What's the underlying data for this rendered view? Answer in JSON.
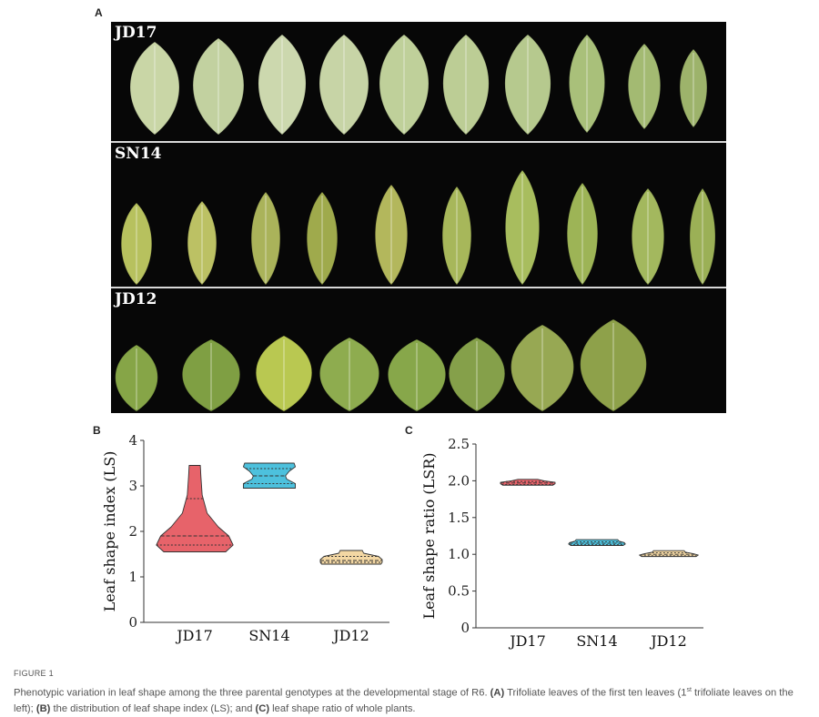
{
  "panels": {
    "a": "A",
    "b": "B",
    "c": "C"
  },
  "photo": {
    "strips": [
      {
        "label": "JD17",
        "leaves": 10,
        "color": "#c9d6a6"
      },
      {
        "label": "SN14",
        "leaves": 10,
        "color": "#a7b85a"
      },
      {
        "label": "JD12",
        "leaves": 8,
        "color": "#7fa045"
      }
    ]
  },
  "chart_data": [
    {
      "type": "violin",
      "ylabel": "Leaf shape index (LS)",
      "ylim": [
        0,
        4
      ],
      "yticks": [
        "0",
        "1",
        "2",
        "3",
        "4"
      ],
      "categories": [
        "JD17",
        "SN14",
        "JD12"
      ],
      "series": [
        {
          "category": "JD17",
          "color": "#e7636a",
          "min": 1.55,
          "max": 3.45,
          "median": 1.9,
          "q1": 1.7,
          "q3": 2.72,
          "profile": [
            [
              1.55,
              0.5
            ],
            [
              1.7,
              0.62
            ],
            [
              1.9,
              0.55
            ],
            [
              2.1,
              0.38
            ],
            [
              2.4,
              0.2
            ],
            [
              2.8,
              0.12
            ],
            [
              3.2,
              0.1
            ],
            [
              3.45,
              0.09
            ]
          ]
        },
        {
          "category": "SN14",
          "color": "#4dc1dd",
          "min": 2.95,
          "max": 3.5,
          "median": 3.22,
          "q1": 3.05,
          "q3": 3.38,
          "profile": [
            [
              2.95,
              0.42
            ],
            [
              3.05,
              0.42
            ],
            [
              3.15,
              0.28
            ],
            [
              3.22,
              0.26
            ],
            [
              3.32,
              0.32
            ],
            [
              3.42,
              0.42
            ],
            [
              3.5,
              0.4
            ]
          ]
        },
        {
          "category": "JD12",
          "color": "#f3d7a3",
          "min": 1.28,
          "max": 1.58,
          "median": 1.36,
          "q1": 1.32,
          "q3": 1.45,
          "profile": [
            [
              1.28,
              0.48
            ],
            [
              1.32,
              0.5
            ],
            [
              1.38,
              0.5
            ],
            [
              1.45,
              0.44
            ],
            [
              1.52,
              0.2
            ],
            [
              1.58,
              0.18
            ]
          ]
        }
      ]
    },
    {
      "type": "violin",
      "ylabel": "Leaf shape ratio (LSR)",
      "ylim": [
        0,
        2.5
      ],
      "yticks": [
        "0",
        "0.5",
        "1.0",
        "1.5",
        "2.0",
        "2.5"
      ],
      "categories": [
        "JD17",
        "SN14",
        "JD12"
      ],
      "series": [
        {
          "category": "JD17",
          "color": "#e7636a",
          "min": 1.94,
          "max": 2.02,
          "median": 1.97,
          "q1": 1.95,
          "q3": 1.99,
          "profile": [
            [
              1.94,
              0.46
            ],
            [
              1.96,
              0.5
            ],
            [
              1.98,
              0.5
            ],
            [
              2.0,
              0.3
            ],
            [
              2.02,
              0.18
            ]
          ]
        },
        {
          "category": "SN14",
          "color": "#4dc1dd",
          "min": 1.12,
          "max": 1.2,
          "median": 1.15,
          "q1": 1.13,
          "q3": 1.17,
          "profile": [
            [
              1.12,
              0.48
            ],
            [
              1.14,
              0.52
            ],
            [
              1.16,
              0.5
            ],
            [
              1.18,
              0.4
            ],
            [
              1.2,
              0.38
            ]
          ]
        },
        {
          "category": "JD12",
          "color": "#f3d7a3",
          "min": 0.97,
          "max": 1.05,
          "median": 1.0,
          "q1": 0.98,
          "q3": 1.02,
          "profile": [
            [
              0.97,
              0.5
            ],
            [
              0.99,
              0.54
            ],
            [
              1.01,
              0.44
            ],
            [
              1.03,
              0.3
            ],
            [
              1.05,
              0.28
            ]
          ]
        }
      ]
    }
  ],
  "caption": {
    "figure_label": "FIGURE 1",
    "p1": "Phenotypic variation in leaf shape among the three parental genotypes at the developmental stage of R6. ",
    "a_tag": "(A)",
    "p2": " Trifoliate leaves of the first ten leaves (1",
    "sup": "st",
    "p3": " trifoliate leaves on the left); ",
    "b_tag": "(B)",
    "p4": " the distribution of leaf shape index (LS); and ",
    "c_tag": "(C)",
    "p5": " leaf shape ratio of whole plants."
  }
}
